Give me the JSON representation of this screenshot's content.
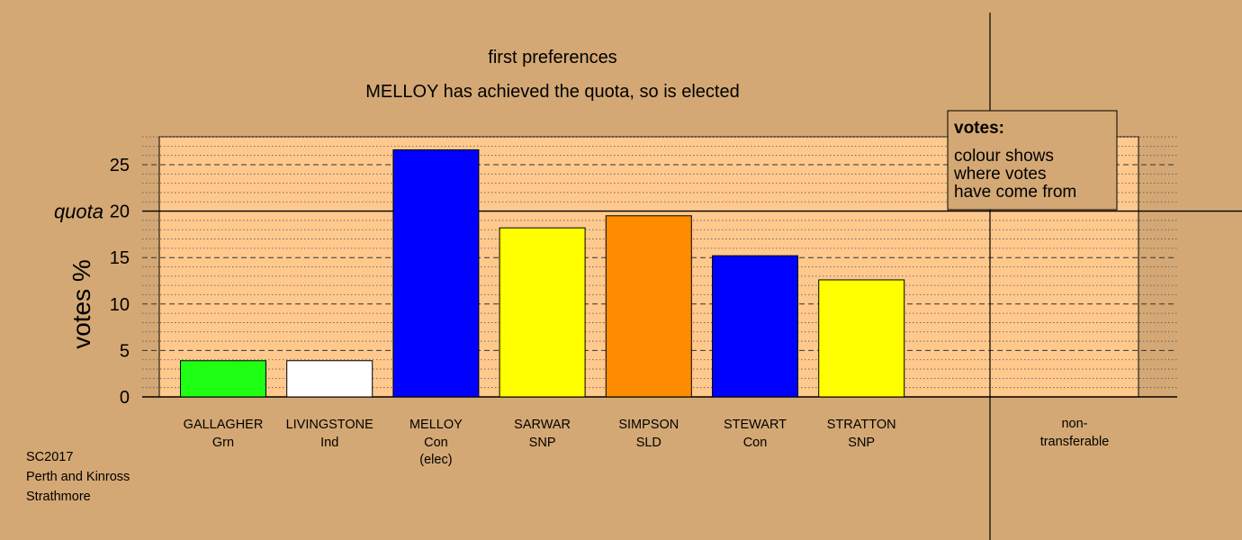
{
  "chart_data": {
    "type": "bar",
    "title": "first preferences",
    "subtitle": "MELLOY has achieved the quota, so is elected",
    "ylabel": "votes %",
    "ylim": [
      0,
      28
    ],
    "yticks": [
      0,
      5,
      10,
      15,
      20,
      25
    ],
    "grid": true,
    "quota": {
      "label": "quota",
      "value": 20
    },
    "categories": [
      {
        "name": "GALLAGHER",
        "party": "Grn",
        "note": "",
        "value": 3.9,
        "color": "#1eff14"
      },
      {
        "name": "LIVINGSTONE",
        "party": "Ind",
        "note": "",
        "value": 3.9,
        "color": "#ffffff"
      },
      {
        "name": "MELLOY",
        "party": "Con",
        "note": "(elec)",
        "value": 26.6,
        "color": "#0000ff"
      },
      {
        "name": "SARWAR",
        "party": "SNP",
        "note": "",
        "value": 18.2,
        "color": "#ffff00"
      },
      {
        "name": "SIMPSON",
        "party": "SLD",
        "note": "",
        "value": 19.5,
        "color": "#ff8c00"
      },
      {
        "name": "STEWART",
        "party": "Con",
        "note": "",
        "value": 15.2,
        "color": "#0000ff"
      },
      {
        "name": "STRATTON",
        "party": "SNP",
        "note": "",
        "value": 12.6,
        "color": "#ffff00"
      }
    ],
    "nontransferable": {
      "line1": "non-",
      "line2": "transferable",
      "value": 0
    },
    "legend": {
      "heading": "votes:",
      "lines": [
        "colour shows",
        "where votes",
        "have come from"
      ],
      "position": "top-right"
    }
  },
  "footer": {
    "lines": [
      "SC2017",
      "Perth and Kinross",
      "Strathmore"
    ]
  },
  "colors": {
    "background": "#d4a874",
    "plot_background": "#ffc98e",
    "legend_background": "#d4a874"
  }
}
